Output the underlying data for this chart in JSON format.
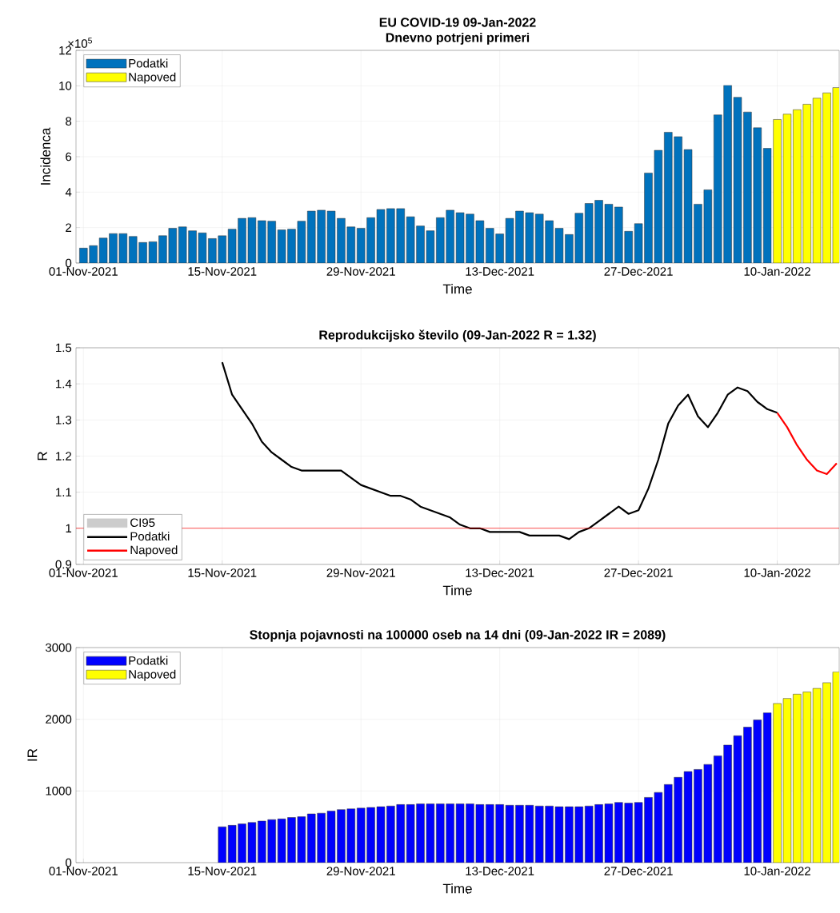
{
  "chart_data": [
    {
      "type": "bar",
      "title": "EU COVID-19 09-Jan-2022",
      "subtitle": "Dnevno potrjeni primeri",
      "xlabel": "Time",
      "ylabel": "Incidenca",
      "annotations": [
        "×10$^{5}$"
      ],
      "xlim": [
        "2021-10-31T06:00",
        "2022-01-16T06:00"
      ],
      "xticks": [
        {
          "value": "2021-11-01",
          "label": "01-Nov-2021"
        },
        {
          "value": "2021-11-15",
          "label": "15-Nov-2021"
        },
        {
          "value": "2021-11-29",
          "label": "29-Nov-2021"
        },
        {
          "value": "2021-12-13",
          "label": "13-Dec-2021"
        },
        {
          "value": "2021-12-27",
          "label": "27-Dec-2021"
        },
        {
          "value": "2022-01-10",
          "label": "10-Jan-2022"
        }
      ],
      "ylim": [
        0,
        12
      ],
      "yticks": [
        0,
        2,
        4,
        6,
        8,
        10,
        12
      ],
      "grid": true,
      "legend": "top left",
      "series": [
        {
          "name": "Podatki",
          "color": "#0072bd",
          "x": [
            "2021-11-01",
            "2021-11-02",
            "2021-11-03",
            "2021-11-04",
            "2021-11-05",
            "2021-11-06",
            "2021-11-07",
            "2021-11-08",
            "2021-11-09",
            "2021-11-10",
            "2021-11-11",
            "2021-11-12",
            "2021-11-13",
            "2021-11-14",
            "2021-11-15",
            "2021-11-16",
            "2021-11-17",
            "2021-11-18",
            "2021-11-19",
            "2021-11-20",
            "2021-11-21",
            "2021-11-22",
            "2021-11-23",
            "2021-11-24",
            "2021-11-25",
            "2021-11-26",
            "2021-11-27",
            "2021-11-28",
            "2021-11-29",
            "2021-11-30",
            "2021-12-01",
            "2021-12-02",
            "2021-12-03",
            "2021-12-04",
            "2021-12-05",
            "2021-12-06",
            "2021-12-07",
            "2021-12-08",
            "2021-12-09",
            "2021-12-10",
            "2021-12-11",
            "2021-12-12",
            "2021-12-13",
            "2021-12-14",
            "2021-12-15",
            "2021-12-16",
            "2021-12-17",
            "2021-12-18",
            "2021-12-19",
            "2021-12-20",
            "2021-12-21",
            "2021-12-22",
            "2021-12-23",
            "2021-12-24",
            "2021-12-25",
            "2021-12-26",
            "2021-12-27",
            "2021-12-28",
            "2021-12-29",
            "2021-12-30",
            "2021-12-31",
            "2022-01-01",
            "2022-01-02",
            "2022-01-03",
            "2022-01-04",
            "2022-01-05",
            "2022-01-06",
            "2022-01-07",
            "2022-01-08",
            "2022-01-09"
          ],
          "values": [
            0.84,
            0.98,
            1.41,
            1.66,
            1.66,
            1.5,
            1.16,
            1.2,
            1.54,
            1.96,
            2.04,
            1.82,
            1.7,
            1.38,
            1.54,
            1.91,
            2.52,
            2.56,
            2.39,
            2.36,
            1.87,
            1.91,
            2.36,
            2.93,
            2.98,
            2.93,
            2.52,
            2.04,
            1.96,
            2.56,
            3.02,
            3.07,
            3.07,
            2.61,
            2.09,
            1.82,
            2.56,
            2.98,
            2.84,
            2.76,
            2.39,
            1.96,
            1.64,
            2.52,
            2.93,
            2.84,
            2.76,
            2.39,
            1.96,
            1.61,
            2.81,
            3.36,
            3.54,
            3.32,
            3.16,
            1.79,
            2.22,
            5.08,
            6.36,
            7.38,
            7.13,
            6.4,
            3.32,
            4.13,
            8.36,
            10.03,
            9.35,
            8.52,
            7.63,
            6.47
          ]
        },
        {
          "name": "Napoved",
          "color": "#ffff00",
          "x": [
            "2022-01-10",
            "2022-01-11",
            "2022-01-12",
            "2022-01-13",
            "2022-01-14",
            "2022-01-15",
            "2022-01-16"
          ],
          "values": [
            8.1,
            8.4,
            8.65,
            8.96,
            9.3,
            9.6,
            9.9
          ]
        }
      ]
    },
    {
      "type": "line",
      "title": "Reprodukcijsko število (09-Jan-2022 R = 1.32)",
      "xlabel": "Time",
      "ylabel": "R",
      "xlim": [
        "2021-10-31T06:00",
        "2022-01-16T06:00"
      ],
      "xticks": [
        {
          "value": "2021-11-01",
          "label": "01-Nov-2021"
        },
        {
          "value": "2021-11-15",
          "label": "15-Nov-2021"
        },
        {
          "value": "2021-11-29",
          "label": "29-Nov-2021"
        },
        {
          "value": "2021-12-13",
          "label": "13-Dec-2021"
        },
        {
          "value": "2021-12-27",
          "label": "27-Dec-2021"
        },
        {
          "value": "2022-01-10",
          "label": "10-Jan-2022"
        }
      ],
      "ylim": [
        0.9,
        1.5
      ],
      "yticks": [
        0.9,
        1,
        1.1,
        1.2,
        1.3,
        1.4,
        1.5
      ],
      "grid": true,
      "legend": "bottom left",
      "ref_lines": [
        {
          "axis": "y",
          "value": 1,
          "color": "#ff0000"
        }
      ],
      "series": [
        {
          "name": "CI95",
          "type": "area",
          "color": "#cccccc"
        },
        {
          "name": "Podatki",
          "color": "#000000",
          "x": [
            "2021-11-15",
            "2021-11-16",
            "2021-11-17",
            "2021-11-18",
            "2021-11-19",
            "2021-11-20",
            "2021-11-21",
            "2021-11-22",
            "2021-11-23",
            "2021-11-24",
            "2021-11-25",
            "2021-11-26",
            "2021-11-27",
            "2021-11-28",
            "2021-11-29",
            "2021-11-30",
            "2021-12-01",
            "2021-12-02",
            "2021-12-03",
            "2021-12-04",
            "2021-12-05",
            "2021-12-06",
            "2021-12-07",
            "2021-12-08",
            "2021-12-09",
            "2021-12-10",
            "2021-12-11",
            "2021-12-12",
            "2021-12-13",
            "2021-12-14",
            "2021-12-15",
            "2021-12-16",
            "2021-12-17",
            "2021-12-18",
            "2021-12-19",
            "2021-12-20",
            "2021-12-21",
            "2021-12-22",
            "2021-12-23",
            "2021-12-24",
            "2021-12-25",
            "2021-12-26",
            "2021-12-27",
            "2021-12-28",
            "2021-12-29",
            "2021-12-30",
            "2021-12-31",
            "2022-01-01",
            "2022-01-02",
            "2022-01-03",
            "2022-01-04",
            "2022-01-05",
            "2022-01-06",
            "2022-01-07",
            "2022-01-08",
            "2022-01-09",
            "2022-01-10"
          ],
          "values": [
            1.46,
            1.37,
            1.33,
            1.29,
            1.24,
            1.21,
            1.19,
            1.17,
            1.16,
            1.16,
            1.16,
            1.16,
            1.16,
            1.14,
            1.12,
            1.11,
            1.1,
            1.09,
            1.09,
            1.08,
            1.06,
            1.05,
            1.04,
            1.03,
            1.01,
            1.0,
            1.0,
            0.99,
            0.99,
            0.99,
            0.99,
            0.98,
            0.98,
            0.98,
            0.98,
            0.97,
            0.99,
            1.0,
            1.02,
            1.04,
            1.06,
            1.04,
            1.05,
            1.11,
            1.19,
            1.29,
            1.34,
            1.37,
            1.31,
            1.28,
            1.32,
            1.37,
            1.39,
            1.38,
            1.35,
            1.33,
            1.32
          ]
        },
        {
          "name": "Napoved",
          "color": "#ff0000",
          "x": [
            "2022-01-10",
            "2022-01-11",
            "2022-01-12",
            "2022-01-13",
            "2022-01-14",
            "2022-01-15",
            "2022-01-16"
          ],
          "values": [
            1.32,
            1.28,
            1.23,
            1.19,
            1.16,
            1.15,
            1.18
          ]
        }
      ]
    },
    {
      "type": "bar",
      "title": "Stopnja pojavnosti na 100000 oseb na 14 dni (09-Jan-2022 IR = 2089)",
      "xlabel": "Time",
      "ylabel": "IR",
      "xlim": [
        "2021-10-31T06:00",
        "2022-01-16T06:00"
      ],
      "xticks": [
        {
          "value": "2021-11-01",
          "label": "01-Nov-2021"
        },
        {
          "value": "2021-11-15",
          "label": "15-Nov-2021"
        },
        {
          "value": "2021-11-29",
          "label": "29-Nov-2021"
        },
        {
          "value": "2021-12-13",
          "label": "13-Dec-2021"
        },
        {
          "value": "2021-12-27",
          "label": "27-Dec-2021"
        },
        {
          "value": "2022-01-10",
          "label": "10-Jan-2022"
        }
      ],
      "ylim": [
        0,
        3000
      ],
      "yticks": [
        0,
        1000,
        2000,
        3000
      ],
      "grid": true,
      "legend": "top left",
      "series": [
        {
          "name": "Podatki",
          "color": "#0000ff",
          "x": [
            "2021-11-15",
            "2021-11-16",
            "2021-11-17",
            "2021-11-18",
            "2021-11-19",
            "2021-11-20",
            "2021-11-21",
            "2021-11-22",
            "2021-11-23",
            "2021-11-24",
            "2021-11-25",
            "2021-11-26",
            "2021-11-27",
            "2021-11-28",
            "2021-11-29",
            "2021-11-30",
            "2021-12-01",
            "2021-12-02",
            "2021-12-03",
            "2021-12-04",
            "2021-12-05",
            "2021-12-06",
            "2021-12-07",
            "2021-12-08",
            "2021-12-09",
            "2021-12-10",
            "2021-12-11",
            "2021-12-12",
            "2021-12-13",
            "2021-12-14",
            "2021-12-15",
            "2021-12-16",
            "2021-12-17",
            "2021-12-18",
            "2021-12-19",
            "2021-12-20",
            "2021-12-21",
            "2021-12-22",
            "2021-12-23",
            "2021-12-24",
            "2021-12-25",
            "2021-12-26",
            "2021-12-27",
            "2021-12-28",
            "2021-12-29",
            "2021-12-30",
            "2021-12-31",
            "2022-01-01",
            "2022-01-02",
            "2022-01-03",
            "2022-01-04",
            "2022-01-05",
            "2022-01-06",
            "2022-01-07",
            "2022-01-08",
            "2022-01-09"
          ],
          "values": [
            500,
            520,
            540,
            560,
            580,
            600,
            610,
            630,
            640,
            680,
            690,
            720,
            740,
            750,
            760,
            770,
            780,
            790,
            810,
            810,
            820,
            820,
            820,
            820,
            820,
            820,
            810,
            810,
            810,
            800,
            800,
            800,
            790,
            790,
            780,
            780,
            780,
            790,
            810,
            820,
            840,
            830,
            840,
            910,
            980,
            1090,
            1190,
            1270,
            1300,
            1370,
            1490,
            1640,
            1770,
            1890,
            1990,
            2090
          ]
        },
        {
          "name": "Napoved",
          "color": "#ffff00",
          "x": [
            "2022-01-10",
            "2022-01-11",
            "2022-01-12",
            "2022-01-13",
            "2022-01-14",
            "2022-01-15",
            "2022-01-16"
          ],
          "values": [
            2220,
            2290,
            2350,
            2380,
            2430,
            2510,
            2660
          ]
        }
      ]
    }
  ]
}
